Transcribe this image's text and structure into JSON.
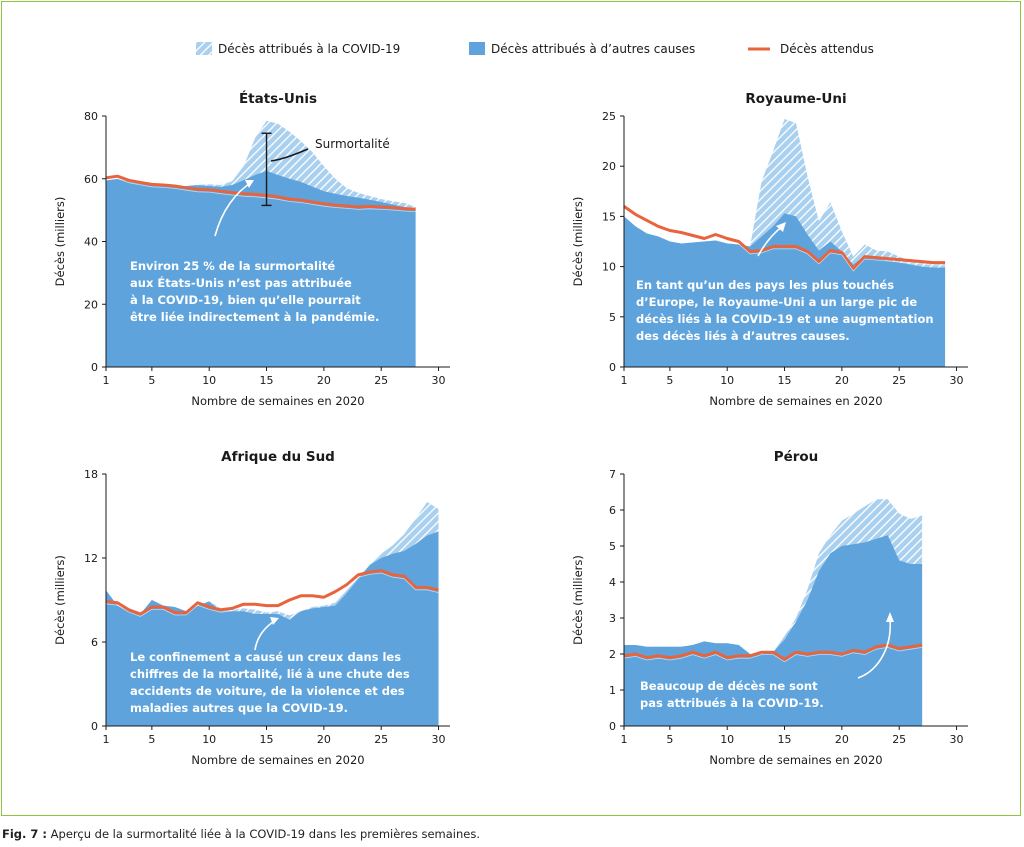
{
  "caption": {
    "label": "Fig. 7 :",
    "text": " Aperçu de la surmortalité liée à la COVID-19 dans les premières semaines."
  },
  "legend": {
    "covid": "Décès attribués à la COVID-19",
    "other": "Décès attribués à d’autres causes",
    "expected": "Décès attendus"
  },
  "colors": {
    "other": "#5ea3dc",
    "covid_hatch": "#a9d0ef",
    "expected": "#e8643c",
    "frame": "#8cc63f"
  },
  "chart_data": [
    {
      "type": "area",
      "title": "États-Unis",
      "xlabel": "Nombre de semaines en 2020",
      "ylabel": "Décès (milliers)",
      "xlim": [
        1,
        31
      ],
      "ylim": [
        0,
        80
      ],
      "xticks": [
        1,
        5,
        10,
        15,
        20,
        25,
        30
      ],
      "yticks": [
        0,
        20,
        40,
        60,
        80
      ],
      "x": [
        1,
        2,
        3,
        4,
        5,
        6,
        7,
        8,
        9,
        10,
        11,
        12,
        13,
        14,
        15,
        16,
        17,
        18,
        19,
        20,
        21,
        22,
        23,
        24,
        25,
        26,
        27,
        28
      ],
      "series": [
        {
          "name": "Décès attribués à d’autres causes",
          "values": [
            59.5,
            60.0,
            59.0,
            58.3,
            57.9,
            57.9,
            57.6,
            57.7,
            57.9,
            57.7,
            57.4,
            58.0,
            59.5,
            61.2,
            62.5,
            61.2,
            60.0,
            59.0,
            57.5,
            56.0,
            55.2,
            54.5,
            54.0,
            53.3,
            52.6,
            51.8,
            51.0,
            50.3
          ]
        },
        {
          "name": "Décès attribués à la COVID-19",
          "values": [
            59.5,
            60.0,
            59.0,
            58.3,
            57.9,
            57.9,
            57.6,
            57.7,
            58.1,
            58.2,
            58.0,
            59.2,
            64.0,
            73.0,
            78.5,
            77.5,
            75.0,
            72.0,
            68.5,
            64.0,
            60.0,
            57.0,
            55.5,
            54.5,
            53.5,
            52.8,
            52.3,
            51.0
          ]
        },
        {
          "name": "Décès attendus",
          "values": [
            60.3,
            60.8,
            59.5,
            58.8,
            58.2,
            58.0,
            57.7,
            57.1,
            56.6,
            56.5,
            56.0,
            55.6,
            55.2,
            55.0,
            54.7,
            54.2,
            53.5,
            53.2,
            52.6,
            52.0,
            51.6,
            51.3,
            51.0,
            51.2,
            51.0,
            50.8,
            50.5,
            50.3
          ]
        }
      ],
      "annotations": [
        "Surmortalité",
        "Environ 25 % de la surmortalité",
        "aux États-Unis n’est pas attribuée",
        "à la COVID-19, bien qu’elle pourrait",
        "être liée indirectement à la pandémie."
      ]
    },
    {
      "type": "area",
      "title": "Royaume-Uni",
      "xlabel": "Nombre de semaines en 2020",
      "ylabel": "Décès (milliers)",
      "xlim": [
        1,
        31
      ],
      "ylim": [
        0,
        25
      ],
      "xticks": [
        1,
        5,
        10,
        15,
        20,
        25,
        30
      ],
      "yticks": [
        0,
        5,
        10,
        15,
        20,
        25
      ],
      "x": [
        1,
        2,
        3,
        4,
        5,
        6,
        7,
        8,
        9,
        10,
        11,
        12,
        13,
        14,
        15,
        16,
        17,
        18,
        19,
        20,
        21,
        22,
        23,
        24,
        25,
        26,
        27,
        28,
        29
      ],
      "series": [
        {
          "name": "Décès attribués à d’autres causes",
          "values": [
            15.0,
            14.0,
            13.3,
            13.0,
            12.5,
            12.3,
            12.4,
            12.5,
            12.6,
            12.3,
            12.2,
            12.0,
            13.0,
            14.0,
            15.3,
            15.0,
            13.2,
            11.6,
            12.5,
            11.5,
            10.2,
            11.1,
            10.8,
            10.6,
            10.4,
            10.2,
            10.0,
            9.9,
            9.9
          ]
        },
        {
          "name": "Décès attribués à la COVID-19",
          "values": [
            15.0,
            14.0,
            13.3,
            13.0,
            12.5,
            12.3,
            12.4,
            12.5,
            12.6,
            12.3,
            12.2,
            12.0,
            18.5,
            21.5,
            24.7,
            24.3,
            19.0,
            14.5,
            16.4,
            13.5,
            11.0,
            12.2,
            11.6,
            11.5,
            11.0,
            10.6,
            10.4,
            10.3,
            10.3
          ]
        },
        {
          "name": "Décès attendus",
          "values": [
            16.0,
            15.2,
            14.6,
            14.0,
            13.6,
            13.4,
            13.1,
            12.8,
            13.2,
            12.8,
            12.5,
            11.5,
            11.6,
            12.0,
            12.0,
            12.0,
            11.5,
            10.5,
            11.6,
            11.4,
            9.8,
            11.0,
            10.9,
            10.8,
            10.7,
            10.6,
            10.5,
            10.4,
            10.4
          ]
        }
      ],
      "annotations": [
        "En tant qu’un des pays les plus touchés",
        "d’Europe, le Royaume-Uni a un large pic de",
        "décès liés à la COVID-19 et une augmentation",
        "des décès liés à d’autres causes."
      ]
    },
    {
      "type": "area",
      "title": "Afrique du Sud",
      "xlabel": "Nombre de semaines en 2020",
      "ylabel": "Décès (milliers)",
      "xlim": [
        1,
        31
      ],
      "ylim": [
        0,
        18
      ],
      "xticks": [
        1,
        5,
        10,
        15,
        20,
        25,
        30
      ],
      "yticks": [
        0,
        6,
        12,
        18
      ],
      "x": [
        1,
        2,
        3,
        4,
        5,
        6,
        7,
        8,
        9,
        10,
        11,
        12,
        13,
        14,
        15,
        16,
        17,
        18,
        19,
        20,
        21,
        22,
        23,
        24,
        25,
        26,
        27,
        28,
        29,
        30
      ],
      "series": [
        {
          "name": "Décès attribués à d’autres causes",
          "values": [
            9.7,
            8.6,
            8.2,
            8.0,
            9.0,
            8.6,
            8.5,
            8.2,
            8.6,
            8.9,
            8.2,
            8.2,
            8.2,
            8.0,
            8.0,
            8.0,
            7.6,
            8.2,
            8.4,
            8.5,
            8.6,
            9.5,
            10.5,
            11.5,
            12.0,
            12.3,
            12.5,
            13.0,
            13.6,
            13.9
          ]
        },
        {
          "name": "Décès attribués à la COVID-19",
          "values": [
            9.7,
            8.6,
            8.2,
            8.0,
            9.0,
            8.6,
            8.5,
            8.2,
            8.6,
            8.9,
            8.4,
            8.3,
            8.4,
            8.3,
            8.1,
            8.2,
            7.9,
            8.2,
            8.5,
            8.6,
            8.8,
            9.7,
            10.6,
            11.6,
            12.3,
            12.9,
            13.7,
            14.8,
            16.0,
            15.5
          ]
        },
        {
          "name": "Décès attendus",
          "values": [
            8.9,
            8.8,
            8.3,
            8.0,
            8.5,
            8.5,
            8.1,
            8.1,
            8.8,
            8.5,
            8.3,
            8.4,
            8.7,
            8.7,
            8.6,
            8.6,
            9.0,
            9.3,
            9.3,
            9.2,
            9.6,
            10.1,
            10.8,
            11.0,
            11.1,
            10.8,
            10.7,
            9.9,
            9.9,
            9.7
          ]
        }
      ],
      "annotations": [
        "Le confinement a causé un creux dans les",
        "chiffres de la mortalité, lié à une chute des",
        "accidents de voiture, de la violence et des",
        "maladies autres que la COVID-19."
      ]
    },
    {
      "type": "area",
      "title": "Pérou",
      "xlabel": "Nombre de semaines en 2020",
      "ylabel": "Décès (milliers)",
      "xlim": [
        1,
        31
      ],
      "ylim": [
        0,
        7
      ],
      "xticks": [
        1,
        5,
        10,
        15,
        20,
        25,
        30
      ],
      "yticks": [
        0,
        1,
        2,
        3,
        4,
        5,
        6,
        7
      ],
      "x": [
        1,
        2,
        3,
        4,
        5,
        6,
        7,
        8,
        9,
        10,
        11,
        12,
        13,
        14,
        15,
        16,
        17,
        18,
        19,
        20,
        21,
        22,
        23,
        24,
        25,
        26,
        27
      ],
      "series": [
        {
          "name": "Décès attribués à d’autres causes",
          "values": [
            2.25,
            2.25,
            2.2,
            2.2,
            2.2,
            2.2,
            2.25,
            2.35,
            2.3,
            2.3,
            2.25,
            2.0,
            2.0,
            2.05,
            2.4,
            2.9,
            3.5,
            4.3,
            4.8,
            5.0,
            5.05,
            5.1,
            5.2,
            5.3,
            4.6,
            4.5,
            4.5
          ]
        },
        {
          "name": "Décès attribués à la COVID-19",
          "values": [
            2.25,
            2.25,
            2.2,
            2.2,
            2.2,
            2.2,
            2.25,
            2.35,
            2.3,
            2.3,
            2.25,
            2.0,
            2.0,
            2.05,
            2.5,
            3.0,
            3.8,
            4.8,
            5.3,
            5.7,
            5.9,
            6.1,
            6.3,
            6.3,
            5.9,
            5.75,
            5.85
          ]
        },
        {
          "name": "Décès attendus",
          "values": [
            1.95,
            2.0,
            1.9,
            1.95,
            1.9,
            1.95,
            2.05,
            1.95,
            2.05,
            1.9,
            1.95,
            1.95,
            2.05,
            2.05,
            1.85,
            2.05,
            2.0,
            2.05,
            2.05,
            2.0,
            2.1,
            2.05,
            2.2,
            2.25,
            2.15,
            2.2,
            2.25
          ]
        }
      ],
      "annotations": [
        "Beaucoup de décès ne sont",
        "pas attribués à la COVID-19."
      ]
    }
  ]
}
